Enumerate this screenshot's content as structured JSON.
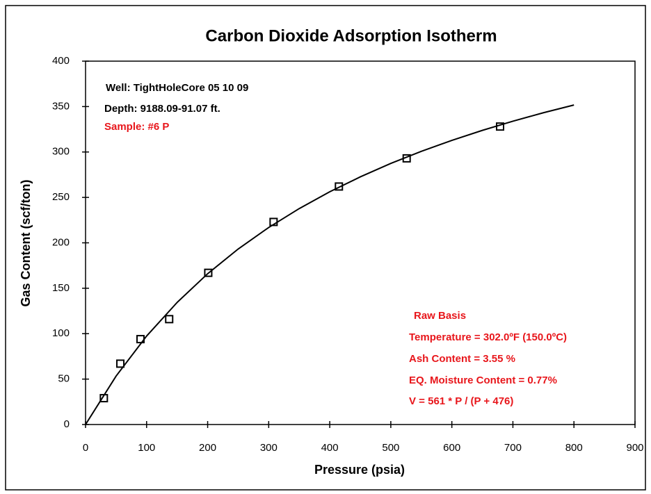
{
  "chart_data": {
    "type": "scatter",
    "title": "Carbon Dioxide Adsorption Isotherm",
    "xlabel": "Pressure (psia)",
    "ylabel": "Gas Content (scf/ton)",
    "xlim": [
      0,
      900
    ],
    "xticks": [
      0,
      100,
      200,
      300,
      400,
      500,
      600,
      700,
      800,
      900
    ],
    "ylim": [
      0,
      400
    ],
    "yticks": [
      0,
      50,
      100,
      150,
      200,
      250,
      300,
      350,
      400
    ],
    "grid": false,
    "series": [
      {
        "color": "#000000",
        "marker": "square",
        "x": [
          30,
          57,
          90,
          137,
          201,
          308,
          415,
          526,
          679
        ],
        "values": [
          29,
          67,
          94,
          116,
          167,
          223,
          262,
          293,
          328
        ]
      },
      {
        "color": "#000000",
        "marker": "line",
        "x": [
          0,
          50,
          100,
          150,
          200,
          250,
          300,
          350,
          400,
          450,
          500,
          550,
          600,
          650,
          700,
          750,
          800
        ],
        "values": [
          0,
          53.3,
          97.4,
          134.4,
          166.0,
          193.2,
          216.9,
          237.7,
          256.2,
          272.6,
          287.4,
          300.7,
          312.8,
          323.8,
          333.9,
          343.2,
          351.7
        ]
      }
    ],
    "annotations": [
      {
        "text": "Well: TightHoleCore  05  10  09",
        "color": "#000000"
      },
      {
        "text": "Depth: 9188.09-91.07  ft.",
        "color": "#000000"
      },
      {
        "text": "Sample: #6 P",
        "color": "#e8161b"
      },
      {
        "text": "Raw Basis",
        "color": "#e8161b"
      },
      {
        "text": "Temperature = 302.0ºF (150.0ºC)",
        "color": "#e8161b"
      },
      {
        "text": "Ash Content = 3.55 %",
        "color": "#e8161b"
      },
      {
        "text": "EQ. Moisture Content = 0.77%",
        "color": "#e8161b"
      },
      {
        "text": "V = 561  * P / (P + 476)",
        "color": "#e8161b"
      }
    ]
  }
}
